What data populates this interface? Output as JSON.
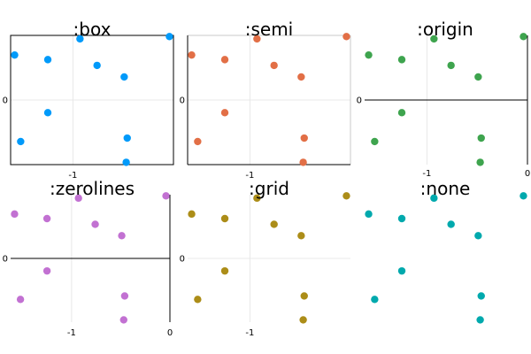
{
  "chart_data": [
    {
      "type": "scatter",
      "title": ":box",
      "color": "#009AFA",
      "x": [
        -1.58,
        -1.25,
        -0.93,
        -0.76,
        -0.49,
        -0.04,
        -1.25,
        -1.52,
        -0.46,
        -0.47
      ],
      "y": [
        0.78,
        0.7,
        1.06,
        0.6,
        0.4,
        1.1,
        -0.22,
        -0.72,
        -0.66,
        -1.08
      ],
      "xlim": [
        -1.62,
        0.0
      ],
      "ylim": [
        -1.12,
        1.12
      ],
      "xticks": [
        -1
      ],
      "xtick_labels": [
        "-1"
      ],
      "yticks": [
        0
      ],
      "ytick_labels": [
        "0"
      ],
      "framestyle": "box",
      "grid": true
    },
    {
      "type": "scatter",
      "title": ":semi",
      "color": "#E26F46",
      "x": [
        -1.58,
        -1.25,
        -0.93,
        -0.76,
        -0.49,
        -0.04,
        -1.25,
        -1.52,
        -0.46,
        -0.47
      ],
      "y": [
        0.78,
        0.7,
        1.06,
        0.6,
        0.4,
        1.1,
        -0.22,
        -0.72,
        -0.66,
        -1.08
      ],
      "xlim": [
        -1.62,
        0.0
      ],
      "ylim": [
        -1.12,
        1.12
      ],
      "xticks": [
        -1
      ],
      "xtick_labels": [
        "-1"
      ],
      "yticks": [
        0
      ],
      "ytick_labels": [
        "0"
      ],
      "framestyle": "semi",
      "grid": true
    },
    {
      "type": "scatter",
      "title": ":origin",
      "color": "#3EA44E",
      "x": [
        -1.58,
        -1.25,
        -0.93,
        -0.76,
        -0.49,
        -0.04,
        -1.25,
        -1.52,
        -0.46,
        -0.47
      ],
      "y": [
        0.78,
        0.7,
        1.06,
        0.6,
        0.4,
        1.1,
        -0.22,
        -0.72,
        -0.66,
        -1.08
      ],
      "xlim": [
        -1.62,
        0.0
      ],
      "ylim": [
        -1.12,
        1.12
      ],
      "xticks": [
        -1,
        0
      ],
      "xtick_labels": [
        "-1",
        "0"
      ],
      "yticks": [
        0
      ],
      "ytick_labels": [
        "0"
      ],
      "framestyle": "origin",
      "grid": true
    },
    {
      "type": "scatter",
      "title": ":zerolines",
      "color": "#C271D2",
      "x": [
        -1.58,
        -1.25,
        -0.93,
        -0.76,
        -0.49,
        -0.04,
        -1.25,
        -1.52,
        -0.46,
        -0.47
      ],
      "y": [
        0.78,
        0.7,
        1.06,
        0.6,
        0.4,
        1.1,
        -0.22,
        -0.72,
        -0.66,
        -1.08
      ],
      "xlim": [
        -1.62,
        0.0
      ],
      "ylim": [
        -1.12,
        1.12
      ],
      "xticks": [
        -1,
        0
      ],
      "xtick_labels": [
        "-1",
        "0"
      ],
      "yticks": [
        0
      ],
      "ytick_labels": [
        "0"
      ],
      "framestyle": "zerolines",
      "grid": true
    },
    {
      "type": "scatter",
      "title": ":grid",
      "color": "#AC8D18",
      "x": [
        -1.58,
        -1.25,
        -0.93,
        -0.76,
        -0.49,
        -0.04,
        -1.25,
        -1.52,
        -0.46,
        -0.47
      ],
      "y": [
        0.78,
        0.7,
        1.06,
        0.6,
        0.4,
        1.1,
        -0.22,
        -0.72,
        -0.66,
        -1.08
      ],
      "xlim": [
        -1.62,
        0.0
      ],
      "ylim": [
        -1.12,
        1.12
      ],
      "xticks": [
        -1
      ],
      "xtick_labels": [
        "-1"
      ],
      "yticks": [
        0
      ],
      "ytick_labels": [
        "0"
      ],
      "framestyle": "grid",
      "grid": true
    },
    {
      "type": "scatter",
      "title": ":none",
      "color": "#00A9AD",
      "x": [
        -1.58,
        -1.25,
        -0.93,
        -0.76,
        -0.49,
        -0.04,
        -1.25,
        -1.52,
        -0.46,
        -0.47
      ],
      "y": [
        0.78,
        0.7,
        1.06,
        0.6,
        0.4,
        1.1,
        -0.22,
        -0.72,
        -0.66,
        -1.08
      ],
      "xlim": [
        -1.62,
        0.0
      ],
      "ylim": [
        -1.12,
        1.12
      ],
      "xticks": [],
      "xtick_labels": [],
      "yticks": [],
      "ytick_labels": [],
      "framestyle": "none",
      "grid": false
    }
  ]
}
